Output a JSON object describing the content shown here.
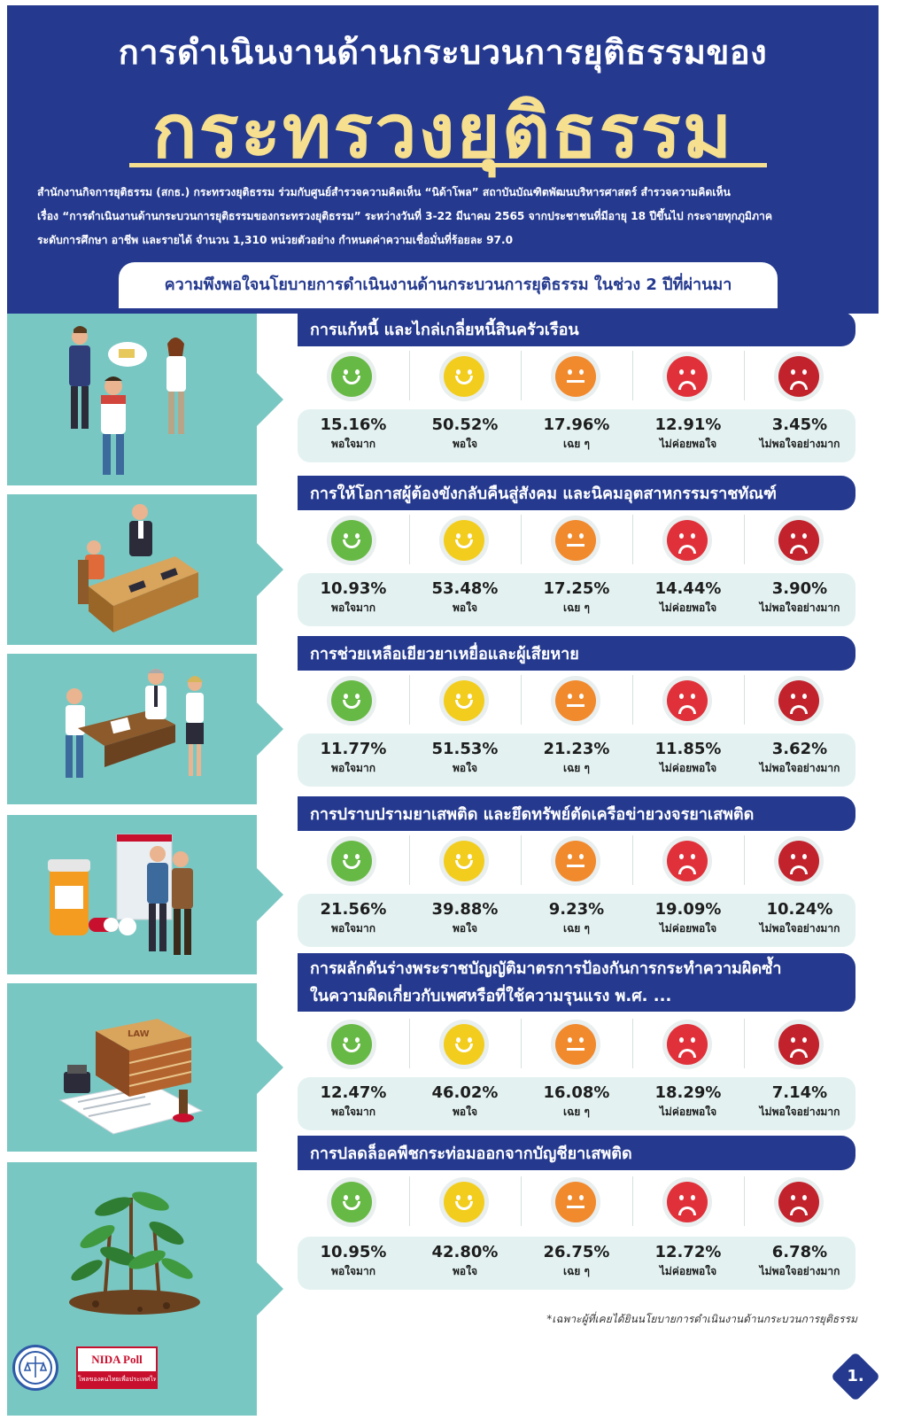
{
  "header": {
    "title_line1": "การดำเนินงานด้านกระบวนการยุติธรรมของ",
    "title_line2": "กระทรวงยุติธรรม",
    "intro_lines": [
      "สำนักงานกิจการยุติธรรม (สกธ.) กระทรวงยุติธรรม ร่วมกับศูนย์สำรวจความคิดเห็น “นิด้าโพล” สถาบันบัณฑิตพัฒนบริหารศาสตร์ สำรวจความคิดเห็น",
      "เรื่อง “การดำเนินงานด้านกระบวนการยุติธรรมของกระทรวงยุติธรรม” ระหว่างวันที่ 3-22 มีนาคม 2565 จากประชาชนที่มีอายุ 18 ปีขึ้นไป กระจายทุกภูมิภาค",
      "ระดับการศึกษา อาชีพ และรายได้ จำนวน 1,310 หน่วยตัวอย่าง กำหนดค่าความเชื่อมั่นที่ร้อยละ 97.0"
    ],
    "subtitle": "ความพึงพอใจนโยบายการดำเนินงานด้านกระบวนการยุติธรรม ในช่วง 2 ปีที่ผ่านมา"
  },
  "colors": {
    "navy": "#253a8f",
    "gold": "#f6df8f",
    "teal": "#79c7c3",
    "very_satisfied": "#67b945",
    "satisfied": "#f2cd1d",
    "neutral": "#f1892d",
    "unsatisfied": "#e0313a",
    "very_unsatisfied": "#c1222c"
  },
  "rating_labels": [
    "พอใจมาก",
    "พอใจ",
    "เฉย ๆ",
    "ไม่ค่อยพอใจ",
    "ไม่พอใจอย่างมาก"
  ],
  "face_icons": [
    "smile-green-icon",
    "smile-yellow-icon",
    "neutral-orange-icon",
    "frown-red-icon",
    "frown-darkred-icon"
  ],
  "sections": [
    {
      "title": "การแก้หนี้ และไกล่เกลี่ยหนี้สินครัวเรือน",
      "illustration": "debt-mediation-illustration",
      "values": [
        "15.16%",
        "50.52%",
        "17.96%",
        "12.91%",
        "3.45%"
      ]
    },
    {
      "title": "การให้โอกาสผู้ต้องขังกลับคืนสู่สังคม และนิคมอุตสาหกรรมราชทัณฑ์",
      "illustration": "courtroom-illustration",
      "values": [
        "10.93%",
        "53.48%",
        "17.25%",
        "14.44%",
        "3.90%"
      ]
    },
    {
      "title": "การช่วยเหลือเยียวยาเหยื่อและผู้เสียหาย",
      "illustration": "victim-assistance-illustration",
      "values": [
        "11.77%",
        "51.53%",
        "21.23%",
        "11.85%",
        "3.62%"
      ]
    },
    {
      "title": "การปราบปรามยาเสพติด และยึดทรัพย์ตัดเครือข่ายวงจรยาเสพติด",
      "illustration": "drug-arrest-illustration",
      "values": [
        "21.56%",
        "39.88%",
        "9.23%",
        "19.09%",
        "10.24%"
      ]
    },
    {
      "title": "การผลักดันร่างพระราชบัญญัติมาตรการป้องกันการกระทำความผิดซ้ำ",
      "title2": "ในความผิดเกี่ยวกับเพศหรือที่ใช้ความรุนแรง พ.ศ. ...",
      "illustration": "law-books-illustration",
      "book_label": "LAW",
      "values": [
        "12.47%",
        "46.02%",
        "16.08%",
        "18.29%",
        "7.14%"
      ]
    },
    {
      "title": "การปลดล็อคพืชกระท่อมออกจากบัญชียาเสพติด",
      "illustration": "kratom-plant-illustration",
      "values": [
        "10.95%",
        "42.80%",
        "26.75%",
        "12.72%",
        "6.78%"
      ]
    }
  ],
  "footnote": "*เฉพาะผู้ที่เคยได้ยินนโยบายการดำเนินงานด้านกระบวนการยุติธรรม",
  "logos": {
    "seal_icon": "ministry-seal-icon",
    "nida_name": "NIDA Poll",
    "nida_tagline": "โพลของคนไทยเพื่อประเทศไทย"
  },
  "page_number": "1."
}
